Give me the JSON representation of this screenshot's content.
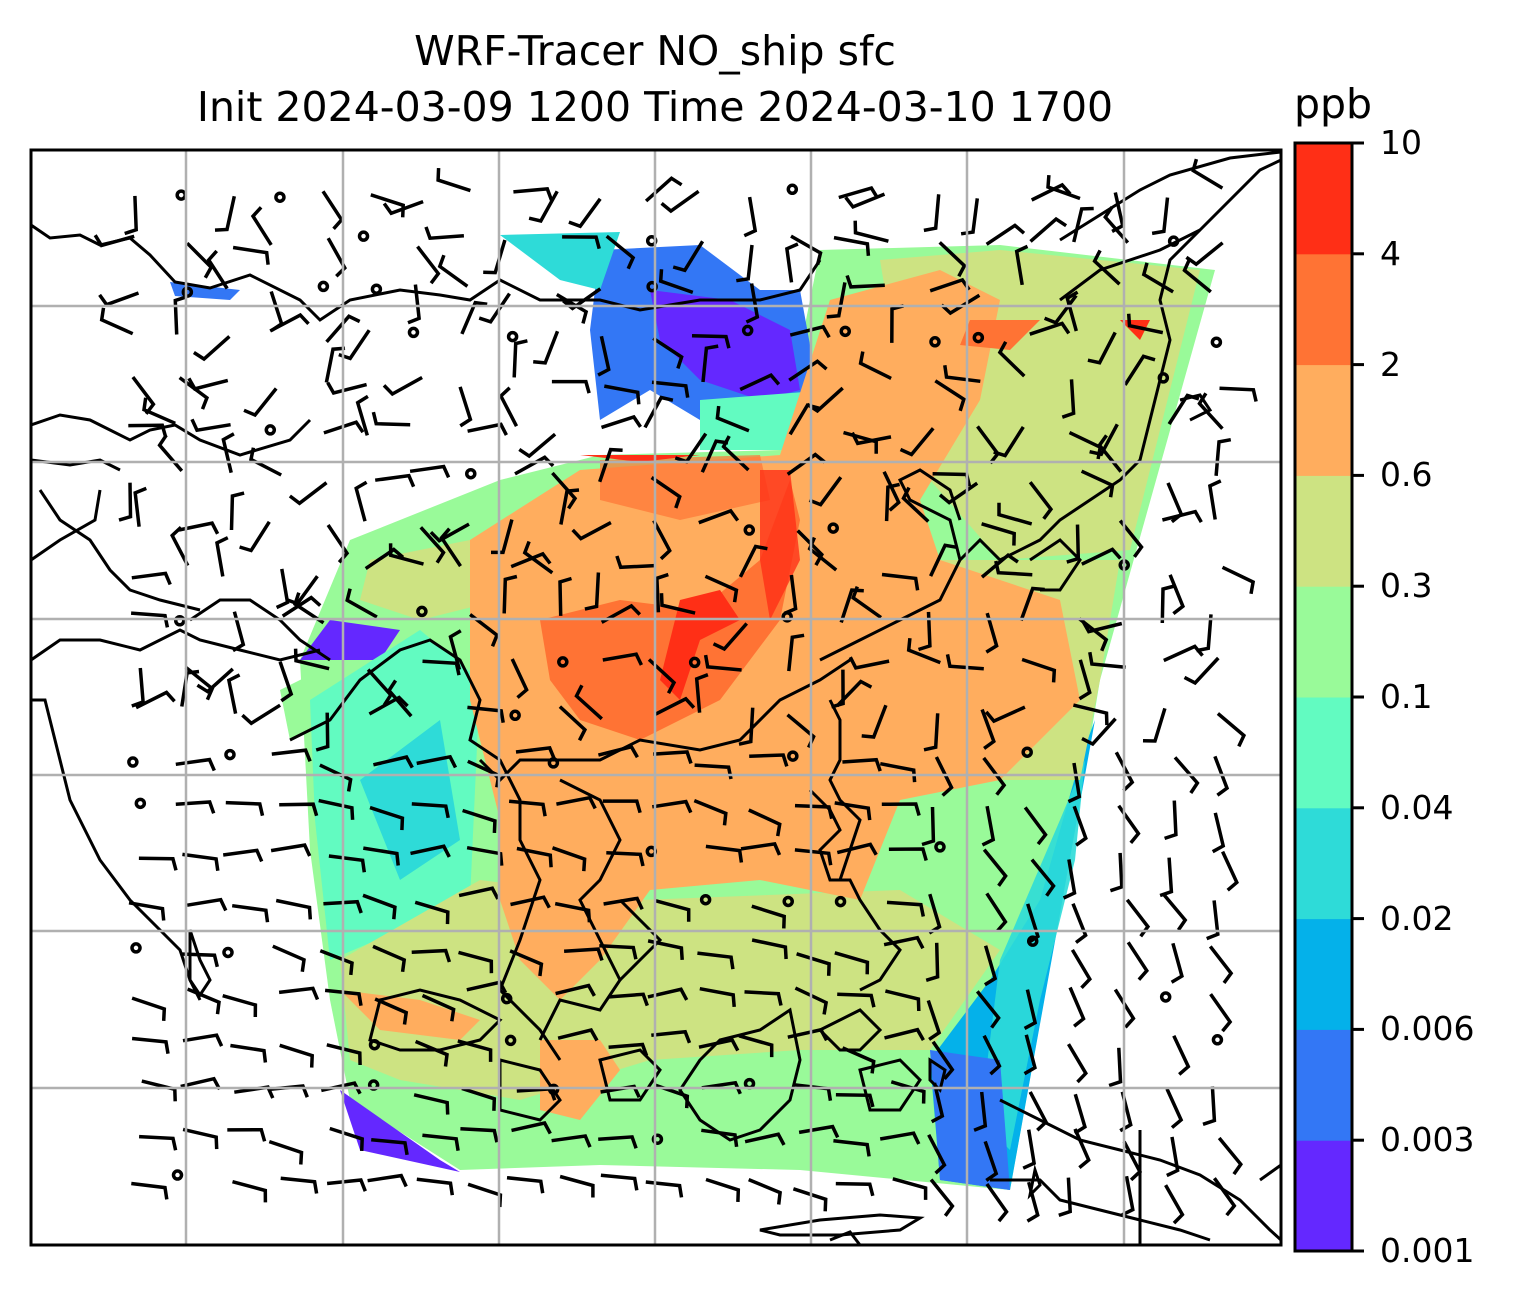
{
  "title": {
    "line1": "WRF-Tracer NO_ship sfc",
    "line2": "Init 2024-03-09 1200 Time 2024-03-10 1700"
  },
  "colorbar": {
    "units": "ppb",
    "ticks": [
      "0.001",
      "0.003",
      "0.006",
      "0.02",
      "0.04",
      "0.1",
      "0.3",
      "0.6",
      "2",
      "4",
      "10"
    ],
    "colors": [
      "#6428ff",
      "#3377f5",
      "#04b1ea",
      "#2edbd8",
      "#62fbc1",
      "#99fa99",
      "#cde382",
      "#ffad5e",
      "#ff7334",
      "#ff2f16"
    ]
  },
  "map": {
    "gridlines": true,
    "field": "NO_ship surface tracer concentration",
    "overlays": [
      "coastlines",
      "country borders",
      "wind barbs"
    ]
  }
}
